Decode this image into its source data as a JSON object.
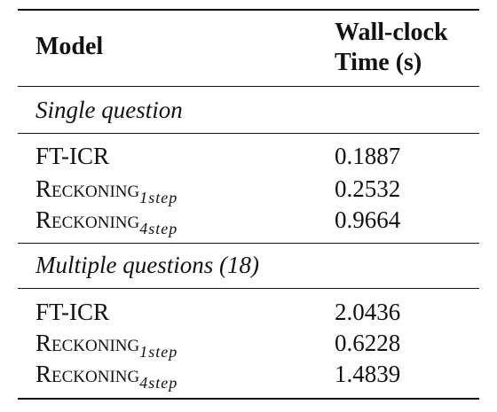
{
  "table": {
    "header": {
      "model": "Model",
      "time_line1": "Wall-clock",
      "time_line2": "Time (s)"
    },
    "sections": [
      {
        "title": "Single question",
        "rows": [
          {
            "model": "FT-ICR",
            "time": "0.1887"
          },
          {
            "model_base": "Reckoning",
            "model_sub": "1step",
            "time": "0.2532"
          },
          {
            "model_base": "Reckoning",
            "model_sub": "4step",
            "time": "0.9664"
          }
        ]
      },
      {
        "title": "Multiple questions (18)",
        "rows": [
          {
            "model": "FT-ICR",
            "time": "2.0436"
          },
          {
            "model_base": "Reckoning",
            "model_sub": "1step",
            "time": "0.6228"
          },
          {
            "model_base": "Reckoning",
            "model_sub": "4step",
            "time": "1.4839"
          }
        ]
      }
    ]
  }
}
